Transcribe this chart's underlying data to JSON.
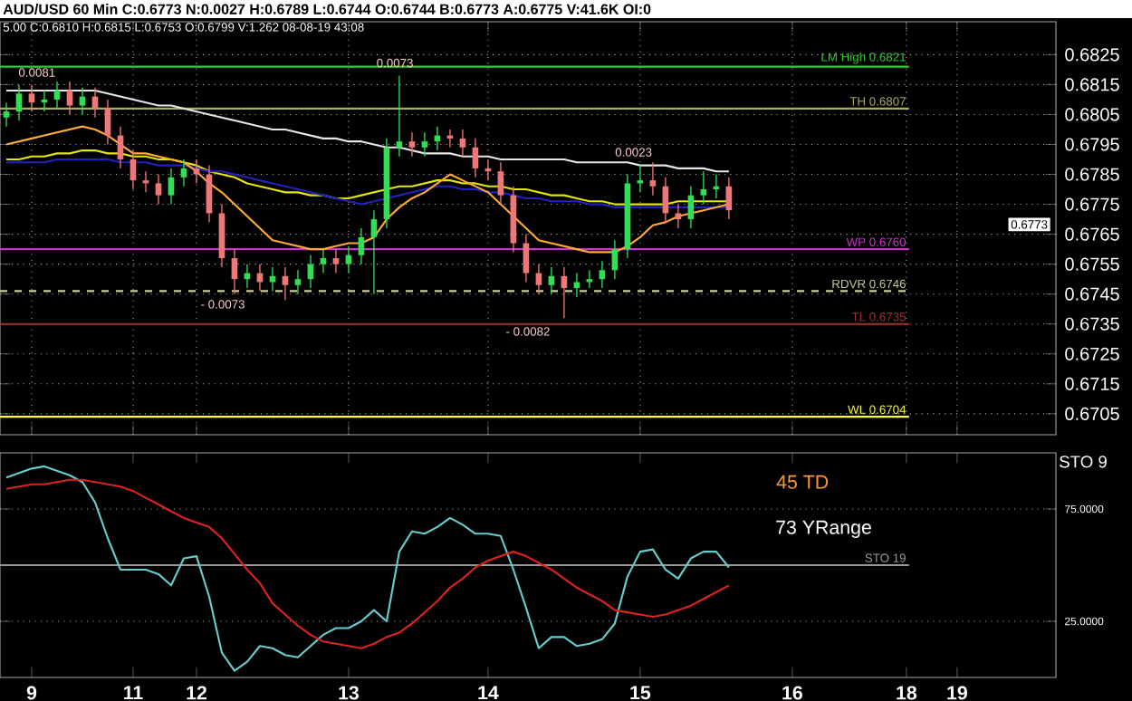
{
  "chart_data": [
    {
      "type": "candlestick",
      "title": "AUD/USD 60 Min C:0.6773 N:0.0027 H:0.6789 L:0.6744 O:0.6744 B:0.6773 A:0.6775 V:41.6K OI:0",
      "subtitle": "5.00 C:0.6810 H:0.6815 L:0.6753 O:0.6799 V:1.262 08-08-19 43:08",
      "categories": [
        null,
        null,
        "9",
        null,
        null,
        null,
        null,
        null,
        null,
        null,
        "11",
        null,
        null,
        null,
        null,
        "12",
        null,
        null,
        null,
        null,
        null,
        null,
        null,
        null,
        null,
        null,
        null,
        "13",
        null,
        null,
        null,
        null,
        null,
        null,
        null,
        null,
        null,
        null,
        "14",
        null,
        null,
        null,
        null,
        null,
        null,
        null,
        null,
        null,
        null,
        null,
        "15",
        null,
        null,
        null,
        null,
        null,
        null,
        null,
        null,
        null,
        null,
        null,
        "16",
        null,
        null,
        null,
        null,
        null,
        null,
        null,
        null,
        "18",
        null,
        null,
        null,
        "19",
        null,
        null,
        null,
        null,
        null,
        null,
        null
      ],
      "ohlc": [
        [
          0.6804,
          0.6809,
          0.6801,
          0.6806
        ],
        [
          0.6806,
          0.6815,
          0.6803,
          0.6812
        ],
        [
          0.6812,
          0.6815,
          0.6806,
          0.6809
        ],
        [
          0.6809,
          0.6813,
          0.6806,
          0.681
        ],
        [
          0.681,
          0.6816,
          0.6807,
          0.6813
        ],
        [
          0.6813,
          0.6816,
          0.6805,
          0.6808
        ],
        [
          0.6808,
          0.6814,
          0.6805,
          0.6811
        ],
        [
          0.6811,
          0.6814,
          0.6804,
          0.6807
        ],
        [
          0.6807,
          0.681,
          0.6795,
          0.6798
        ],
        [
          0.6798,
          0.6801,
          0.6787,
          0.679
        ],
        [
          0.679,
          0.6793,
          0.678,
          0.6783
        ],
        [
          0.6783,
          0.6786,
          0.6779,
          0.6782
        ],
        [
          0.6782,
          0.6785,
          0.6775,
          0.6778
        ],
        [
          0.6778,
          0.6787,
          0.6775,
          0.6784
        ],
        [
          0.6784,
          0.679,
          0.6781,
          0.6787
        ],
        [
          0.6787,
          0.679,
          0.6782,
          0.6785
        ],
        [
          0.6785,
          0.6788,
          0.6769,
          0.6772
        ],
        [
          0.6772,
          0.6775,
          0.6754,
          0.6757
        ],
        [
          0.6757,
          0.676,
          0.6745,
          0.675
        ],
        [
          0.675,
          0.6755,
          0.6747,
          0.6752
        ],
        [
          0.6752,
          0.6755,
          0.6746,
          0.6749
        ],
        [
          0.6749,
          0.6754,
          0.6746,
          0.6751
        ],
        [
          0.6751,
          0.6754,
          0.6743,
          0.6748
        ],
        [
          0.6748,
          0.6753,
          0.6745,
          0.675
        ],
        [
          0.675,
          0.6758,
          0.6747,
          0.6755
        ],
        [
          0.6755,
          0.676,
          0.6752,
          0.6757
        ],
        [
          0.6757,
          0.676,
          0.6752,
          0.6755
        ],
        [
          0.6755,
          0.6761,
          0.6752,
          0.6758
        ],
        [
          0.6758,
          0.6767,
          0.6755,
          0.6764
        ],
        [
          0.6764,
          0.6773,
          0.6745,
          0.677
        ],
        [
          0.677,
          0.6797,
          0.6767,
          0.6794
        ],
        [
          0.6794,
          0.6818,
          0.6791,
          0.6796
        ],
        [
          0.6796,
          0.6799,
          0.6791,
          0.6794
        ],
        [
          0.6794,
          0.6799,
          0.6791,
          0.6796
        ],
        [
          0.6796,
          0.6801,
          0.6793,
          0.6798
        ],
        [
          0.6798,
          0.68,
          0.6794,
          0.6797
        ],
        [
          0.6797,
          0.68,
          0.6791,
          0.6794
        ],
        [
          0.6794,
          0.6797,
          0.6784,
          0.6787
        ],
        [
          0.6787,
          0.679,
          0.6783,
          0.6786
        ],
        [
          0.6786,
          0.6789,
          0.6775,
          0.6778
        ],
        [
          0.6778,
          0.6781,
          0.6759,
          0.6762
        ],
        [
          0.6762,
          0.6765,
          0.6749,
          0.6752
        ],
        [
          0.6752,
          0.6755,
          0.6745,
          0.6748
        ],
        [
          0.6748,
          0.6754,
          0.6745,
          0.6751
        ],
        [
          0.6751,
          0.6754,
          0.6737,
          0.6747
        ],
        [
          0.6747,
          0.6752,
          0.6744,
          0.6749
        ],
        [
          0.6749,
          0.6753,
          0.6747,
          0.675
        ],
        [
          0.675,
          0.6756,
          0.6747,
          0.6753
        ],
        [
          0.6753,
          0.6763,
          0.675,
          0.676
        ],
        [
          0.676,
          0.6785,
          0.6757,
          0.6782
        ],
        [
          0.6782,
          0.6788,
          0.6779,
          0.6783
        ],
        [
          0.6783,
          0.6789,
          0.6778,
          0.6781
        ],
        [
          0.6781,
          0.6784,
          0.6769,
          0.6772
        ],
        [
          0.6772,
          0.6775,
          0.6767,
          0.677
        ],
        [
          0.677,
          0.6781,
          0.6767,
          0.6778
        ],
        [
          0.6778,
          0.6786,
          0.6775,
          0.678
        ],
        [
          0.678,
          0.6785,
          0.6777,
          0.6781
        ],
        [
          0.6781,
          0.6784,
          0.677,
          0.6773
        ],
        null,
        null,
        null,
        null,
        null,
        null,
        null,
        null,
        null,
        null,
        null,
        null,
        null,
        null,
        null,
        null,
        null,
        null,
        null,
        null,
        null,
        null,
        null,
        null,
        null
      ],
      "colors": [
        "#33dd55",
        "#33dd55",
        "#ee7777",
        "#33dd55",
        "#33dd55",
        "#ee7777",
        "#33dd55",
        "#ee7777",
        "#ee7777",
        "#ee7777",
        "#ee7777",
        "#ee7777",
        "#ee7777",
        "#33dd55",
        "#33dd55",
        "#ee7777",
        "#ee7777",
        "#ee7777",
        "#ee7777",
        "#33dd55",
        "#ee7777",
        "#33dd55",
        "#ee7777",
        "#33dd55",
        "#33dd55",
        "#33dd55",
        "#ee7777",
        "#33dd55",
        "#33dd55",
        "#33dd55",
        "#33dd55",
        "#33dd55",
        "#ee7777",
        "#33dd55",
        "#33dd55",
        "#ee7777",
        "#ee7777",
        "#ee7777",
        "#ee7777",
        "#ee7777",
        "#ee7777",
        "#ee7777",
        "#ee7777",
        "#33dd55",
        "#ee7777",
        "#33dd55",
        "#33dd55",
        "#33dd55",
        "#33dd55",
        "#33dd55",
        "#33dd55",
        "#ee7777",
        "#ee7777",
        "#ee7777",
        "#33dd55",
        "#33dd55",
        "#33dd55",
        "#ee7777",
        null,
        null,
        null,
        null,
        null,
        null,
        null,
        null,
        null,
        null,
        null,
        null,
        null,
        null,
        null,
        null,
        null,
        null,
        null,
        null,
        null,
        null,
        null,
        null,
        null
      ],
      "series": [
        {
          "type": "line",
          "color": "#e6e6e6",
          "values": [
            0.6813,
            0.6813,
            0.6813,
            0.6813,
            0.6813,
            0.6813,
            0.6813,
            0.6813,
            0.6812,
            0.6811,
            0.681,
            0.6809,
            0.6808,
            0.6808,
            0.6807,
            0.6806,
            0.6805,
            0.6804,
            0.6803,
            0.6802,
            0.6801,
            0.68,
            0.68,
            0.6799,
            0.6798,
            0.6797,
            0.6797,
            0.6796,
            0.6796,
            0.6795,
            0.6794,
            0.6794,
            0.6793,
            0.6792,
            0.6792,
            0.6792,
            0.6791,
            0.6791,
            0.6791,
            0.679,
            0.679,
            0.679,
            0.679,
            0.679,
            0.679,
            0.6789,
            0.6789,
            0.6789,
            0.6789,
            0.6789,
            0.6788,
            0.6788,
            0.6788,
            0.6787,
            0.6787,
            0.6787,
            0.6786,
            0.6786,
            null,
            null,
            null,
            null,
            null,
            null,
            null,
            null,
            null,
            null,
            null,
            null,
            null,
            null,
            null,
            null,
            null,
            null,
            null,
            null,
            null,
            null,
            null,
            null,
            null
          ]
        },
        {
          "type": "line",
          "color": "#e6e600",
          "values": [
            0.679,
            0.679,
            0.6791,
            0.6791,
            0.6792,
            0.6792,
            0.6793,
            0.6793,
            0.6792,
            0.6792,
            0.6791,
            0.6791,
            0.679,
            0.679,
            0.6789,
            0.6788,
            0.6786,
            0.6785,
            0.6784,
            0.6782,
            0.6781,
            0.678,
            0.6779,
            0.6779,
            0.6778,
            0.6778,
            0.6777,
            0.6777,
            0.6778,
            0.6779,
            0.678,
            0.6781,
            0.6781,
            0.6782,
            0.6783,
            0.6783,
            0.6782,
            0.6782,
            0.6781,
            0.6781,
            0.678,
            0.678,
            0.6779,
            0.6778,
            0.6778,
            0.6777,
            0.6776,
            0.6776,
            0.6775,
            0.6775,
            0.6775,
            0.6775,
            0.6775,
            0.6776,
            0.6776,
            0.6776,
            0.6776,
            0.6776,
            null,
            null,
            null,
            null,
            null,
            null,
            null,
            null,
            null,
            null,
            null,
            null,
            null,
            null,
            null,
            null,
            null,
            null,
            null,
            null,
            null,
            null,
            null,
            null,
            null
          ]
        },
        {
          "type": "line",
          "color": "#2222bb",
          "values": [
            0.6789,
            0.6789,
            0.6789,
            0.6789,
            0.679,
            0.679,
            0.679,
            0.679,
            0.679,
            0.6789,
            0.6789,
            0.6789,
            0.6788,
            0.6788,
            0.6788,
            0.6787,
            0.6786,
            0.6786,
            0.6785,
            0.6784,
            0.6783,
            0.6782,
            0.6781,
            0.678,
            0.6779,
            0.6778,
            0.6777,
            0.6776,
            0.6775,
            0.6776,
            0.6777,
            0.6778,
            0.6779,
            0.678,
            0.6781,
            0.6781,
            0.678,
            0.678,
            0.6779,
            0.6779,
            0.6778,
            0.6777,
            0.6777,
            0.6776,
            0.6776,
            0.6776,
            0.6775,
            0.6775,
            0.6774,
            0.6774,
            0.6774,
            0.6774,
            0.6774,
            0.6774,
            0.6774,
            0.6774,
            0.6774,
            0.6774,
            null,
            null,
            null,
            null,
            null,
            null,
            null,
            null,
            null,
            null,
            null,
            null,
            null,
            null,
            null,
            null,
            null,
            null,
            null,
            null,
            null,
            null,
            null,
            null,
            null
          ]
        },
        {
          "type": "line",
          "color": "#ffaa33",
          "values": [
            0.6795,
            0.6796,
            0.6797,
            0.6798,
            0.6799,
            0.68,
            0.6801,
            0.68,
            0.6798,
            0.6795,
            0.6792,
            0.6792,
            0.6791,
            0.679,
            0.6789,
            0.6786,
            0.6782,
            0.6779,
            0.6775,
            0.6771,
            0.6767,
            0.6763,
            0.6762,
            0.6761,
            0.676,
            0.676,
            0.6761,
            0.6762,
            0.6762,
            0.6764,
            0.677,
            0.6774,
            0.6777,
            0.6779,
            0.6782,
            0.6785,
            0.6783,
            0.6781,
            0.6779,
            0.6775,
            0.6771,
            0.6767,
            0.6763,
            0.6762,
            0.6761,
            0.676,
            0.6759,
            0.6759,
            0.6759,
            0.6761,
            0.6764,
            0.6768,
            0.6769,
            0.6771,
            0.6772,
            0.6773,
            0.6774,
            0.6775,
            null,
            null,
            null,
            null,
            null,
            null,
            null,
            null,
            null,
            null,
            null,
            null,
            null,
            null,
            null,
            null,
            null,
            null,
            null,
            null,
            null,
            null,
            null,
            null,
            null
          ]
        }
      ],
      "ylim": [
        0.6698,
        0.6836
      ],
      "yticks": [
        0.6705,
        0.6715,
        0.6725,
        0.6735,
        0.6745,
        0.6755,
        0.6765,
        0.6775,
        0.6785,
        0.6795,
        0.6805,
        0.6815,
        0.6825
      ],
      "tick_labels": "y",
      "grid": true,
      "ref_lines": [
        {
          "axis": "y",
          "value": 0.6821,
          "label": "LM High 0.6821",
          "color": "#33cc33"
        },
        {
          "axis": "y",
          "value": 0.6807,
          "label": "TH 0.6807",
          "color": "#aaaa66"
        },
        {
          "axis": "y",
          "value": 0.676,
          "label": "WP 0.6760",
          "color": "#cc33cc"
        },
        {
          "axis": "y",
          "value": 0.6746,
          "label": "RDVR 0.6746",
          "color": "#cccc99",
          "line_style": "dashed"
        },
        {
          "axis": "y",
          "value": 0.6735,
          "label": "TL 0.6735",
          "color": "#993333"
        },
        {
          "axis": "y",
          "value": 0.6704,
          "label": "WL 0.6704",
          "color": "#ffff33"
        }
      ],
      "annotations": [
        "0.0081",
        "0.0073",
        "- 0.0073",
        "- 0.0082",
        "0.0023",
        "0.6773"
      ]
    },
    {
      "type": "line",
      "categories": [
        null,
        null,
        "9",
        null,
        null,
        null,
        null,
        null,
        null,
        null,
        "11",
        null,
        null,
        null,
        null,
        "12",
        null,
        null,
        null,
        null,
        null,
        null,
        null,
        null,
        null,
        null,
        null,
        "13",
        null,
        null,
        null,
        null,
        null,
        null,
        null,
        null,
        null,
        null,
        "14",
        null,
        null,
        null,
        null,
        null,
        null,
        null,
        null,
        null,
        null,
        null,
        "15",
        null,
        null,
        null,
        null,
        null,
        null,
        null,
        null,
        null,
        null,
        null,
        "16",
        null,
        null,
        null,
        null,
        null,
        null,
        null,
        null,
        "18",
        null,
        null,
        null,
        "19",
        null,
        null,
        null,
        null,
        null,
        null,
        null
      ],
      "series": [
        {
          "color": "#66cccc",
          "values": [
            89,
            91,
            93,
            94,
            92,
            90,
            87,
            78,
            62,
            48,
            48,
            48,
            46,
            41,
            53,
            54,
            36,
            11,
            3,
            7,
            14,
            13,
            10,
            9,
            14,
            19,
            22,
            22,
            25,
            30,
            25,
            56,
            65,
            64,
            67,
            71,
            68,
            64,
            64,
            63,
            48,
            31,
            13,
            18,
            18,
            14,
            15,
            17,
            24,
            45,
            56,
            57,
            48,
            44,
            53,
            56,
            56,
            49,
            null,
            null,
            null,
            null,
            null,
            null,
            null,
            null,
            null,
            null,
            null,
            null,
            null,
            null,
            null,
            null,
            null,
            null,
            null,
            null,
            null,
            null,
            null,
            null,
            null
          ]
        },
        {
          "color": "#dd2222",
          "values": [
            84,
            85,
            86,
            86,
            87,
            88,
            88,
            87,
            86,
            85,
            83,
            80,
            77,
            74,
            71,
            69,
            67,
            62,
            55,
            48,
            42,
            33,
            28,
            23,
            19,
            16,
            15,
            14,
            13,
            15,
            18,
            20,
            24,
            29,
            34,
            40,
            44,
            49,
            52,
            54,
            56,
            54,
            51,
            48,
            44,
            40,
            37,
            34,
            30,
            29,
            28,
            27,
            28,
            30,
            32,
            35,
            38,
            41,
            null,
            null,
            null,
            null,
            null,
            null,
            null,
            null,
            null,
            null,
            null,
            null,
            null,
            null,
            null,
            null,
            null,
            null,
            null,
            null,
            null,
            null,
            null,
            null,
            null
          ]
        }
      ],
      "ylim": [
        0,
        100
      ],
      "yticks": [
        {
          "value": 25,
          "label": "25.0000"
        },
        {
          "value": 75,
          "label": "75.0000"
        }
      ],
      "grid": "y",
      "ref_lines": [
        {
          "axis": "y",
          "value": 50,
          "label": "STO 19",
          "color": "#999999"
        }
      ],
      "annotations": [
        "45 TD",
        "73 YRange",
        "STO 9"
      ]
    }
  ]
}
